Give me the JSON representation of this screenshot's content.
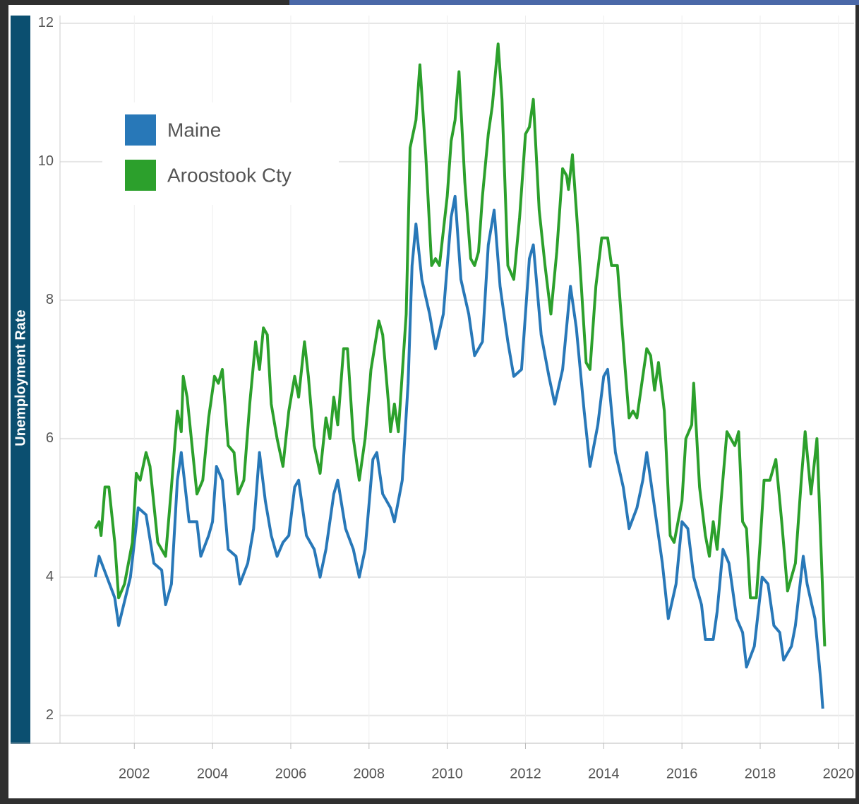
{
  "chart_data": {
    "type": "line",
    "y_label": "Unemployment Rate",
    "xlim": [
      2000.1,
      2020.4
    ],
    "xticks": [
      2002,
      2004,
      2006,
      2008,
      2010,
      2012,
      2014,
      2016,
      2018,
      2020
    ],
    "ylim": [
      1.6,
      12.03
    ],
    "yticks": [
      2,
      4,
      6,
      8,
      10,
      12
    ],
    "grid": true,
    "legend": "upper left",
    "series": [
      {
        "name": "Maine",
        "color": "#2878b8",
        "x": [
          2001.0,
          2001.1,
          2001.3,
          2001.5,
          2001.6,
          2001.9,
          2002.1,
          2002.3,
          2002.5,
          2002.7,
          2002.8,
          2002.95,
          2003.1,
          2003.2,
          2003.4,
          2003.6,
          2003.7,
          2003.9,
          2004.0,
          2004.1,
          2004.25,
          2004.4,
          2004.6,
          2004.7,
          2004.9,
          2005.05,
          2005.2,
          2005.35,
          2005.5,
          2005.65,
          2005.8,
          2005.95,
          2006.1,
          2006.2,
          2006.4,
          2006.6,
          2006.75,
          2006.9,
          2007.1,
          2007.2,
          2007.4,
          2007.6,
          2007.75,
          2007.9,
          2008.1,
          2008.2,
          2008.35,
          2008.55,
          2008.65,
          2008.85,
          2009.0,
          2009.1,
          2009.2,
          2009.35,
          2009.55,
          2009.7,
          2009.9,
          2010.1,
          2010.2,
          2010.35,
          2010.55,
          2010.7,
          2010.9,
          2011.05,
          2011.2,
          2011.35,
          2011.55,
          2011.7,
          2011.9,
          2012.1,
          2012.2,
          2012.4,
          2012.6,
          2012.75,
          2012.95,
          2013.15,
          2013.3,
          2013.5,
          2013.65,
          2013.85,
          2014.0,
          2014.1,
          2014.3,
          2014.5,
          2014.65,
          2014.85,
          2015.0,
          2015.1,
          2015.3,
          2015.5,
          2015.65,
          2015.85,
          2016.0,
          2016.15,
          2016.3,
          2016.5,
          2016.6,
          2016.8,
          2016.9,
          2017.05,
          2017.2,
          2017.4,
          2017.55,
          2017.65,
          2017.85,
          2018.05,
          2018.2,
          2018.35,
          2018.5,
          2018.6,
          2018.8,
          2018.9,
          2019.1,
          2019.2,
          2019.4,
          2019.55,
          2019.6
        ],
        "values": [
          4.0,
          4.3,
          4.0,
          3.7,
          3.3,
          4.0,
          5.0,
          4.9,
          4.2,
          4.1,
          3.6,
          3.9,
          5.4,
          5.8,
          4.8,
          4.8,
          4.3,
          4.6,
          4.8,
          5.6,
          5.4,
          4.4,
          4.3,
          3.9,
          4.2,
          4.7,
          5.8,
          5.1,
          4.6,
          4.3,
          4.5,
          4.6,
          5.3,
          5.4,
          4.6,
          4.4,
          4.0,
          4.4,
          5.2,
          5.4,
          4.7,
          4.4,
          4.0,
          4.4,
          5.7,
          5.8,
          5.2,
          5.0,
          4.8,
          5.4,
          6.8,
          8.5,
          9.1,
          8.3,
          7.8,
          7.3,
          7.8,
          9.2,
          9.5,
          8.3,
          7.8,
          7.2,
          7.4,
          8.8,
          9.3,
          8.2,
          7.4,
          6.9,
          7.0,
          8.6,
          8.8,
          7.5,
          6.9,
          6.5,
          7.0,
          8.2,
          7.6,
          6.4,
          5.6,
          6.2,
          6.9,
          7.0,
          5.8,
          5.3,
          4.7,
          5.0,
          5.4,
          5.8,
          5.0,
          4.2,
          3.4,
          3.9,
          4.8,
          4.7,
          4.0,
          3.6,
          3.1,
          3.1,
          3.5,
          4.4,
          4.2,
          3.4,
          3.2,
          2.7,
          3.0,
          4.0,
          3.9,
          3.3,
          3.2,
          2.8,
          3.0,
          3.3,
          4.3,
          3.9,
          3.4,
          2.5,
          2.1
        ]
      },
      {
        "name": "Aroostook Cty",
        "color": "#2ca02c",
        "x": [
          2001.0,
          2001.1,
          2001.15,
          2001.25,
          2001.35,
          2001.5,
          2001.6,
          2001.75,
          2001.95,
          2002.05,
          2002.15,
          2002.3,
          2002.4,
          2002.6,
          2002.8,
          2002.95,
          2003.1,
          2003.2,
          2003.25,
          2003.35,
          2003.6,
          2003.75,
          2003.9,
          2004.05,
          2004.15,
          2004.25,
          2004.4,
          2004.55,
          2004.65,
          2004.8,
          2004.95,
          2005.1,
          2005.2,
          2005.3,
          2005.4,
          2005.5,
          2005.65,
          2005.8,
          2005.95,
          2006.1,
          2006.2,
          2006.35,
          2006.45,
          2006.6,
          2006.75,
          2006.9,
          2007.0,
          2007.1,
          2007.2,
          2007.35,
          2007.45,
          2007.6,
          2007.75,
          2007.9,
          2008.05,
          2008.25,
          2008.35,
          2008.5,
          2008.55,
          2008.65,
          2008.75,
          2008.95,
          2009.05,
          2009.2,
          2009.3,
          2009.45,
          2009.6,
          2009.7,
          2009.8,
          2010.0,
          2010.1,
          2010.2,
          2010.3,
          2010.45,
          2010.6,
          2010.7,
          2010.8,
          2010.9,
          2011.05,
          2011.15,
          2011.3,
          2011.4,
          2011.55,
          2011.7,
          2011.85,
          2012.0,
          2012.1,
          2012.2,
          2012.35,
          2012.5,
          2012.65,
          2012.8,
          2012.95,
          2013.05,
          2013.1,
          2013.2,
          2013.35,
          2013.55,
          2013.65,
          2013.8,
          2013.95,
          2014.1,
          2014.2,
          2014.35,
          2014.55,
          2014.65,
          2014.75,
          2014.85,
          2015.0,
          2015.1,
          2015.2,
          2015.3,
          2015.4,
          2015.55,
          2015.7,
          2015.8,
          2016.0,
          2016.1,
          2016.25,
          2016.3,
          2016.45,
          2016.6,
          2016.7,
          2016.8,
          2016.9,
          2017.0,
          2017.15,
          2017.35,
          2017.45,
          2017.55,
          2017.65,
          2017.75,
          2017.9,
          2018.0,
          2018.1,
          2018.25,
          2018.4,
          2018.55,
          2018.7,
          2018.9,
          2019.05,
          2019.15,
          2019.3,
          2019.45,
          2019.55,
          2019.65
        ],
        "values": [
          4.7,
          4.8,
          4.6,
          5.3,
          5.3,
          4.5,
          3.7,
          3.9,
          4.5,
          5.5,
          5.4,
          5.8,
          5.6,
          4.5,
          4.3,
          5.3,
          6.4,
          6.1,
          6.9,
          6.6,
          5.2,
          5.4,
          6.3,
          6.9,
          6.8,
          7.0,
          5.9,
          5.8,
          5.2,
          5.4,
          6.5,
          7.4,
          7.0,
          7.6,
          7.5,
          6.5,
          6.0,
          5.6,
          6.4,
          6.9,
          6.6,
          7.4,
          6.9,
          5.9,
          5.5,
          6.3,
          6.0,
          6.6,
          6.2,
          7.3,
          7.3,
          6.0,
          5.4,
          6.0,
          7.0,
          7.7,
          7.5,
          6.5,
          6.1,
          6.5,
          6.1,
          7.8,
          10.2,
          10.6,
          11.4,
          10.1,
          8.5,
          8.6,
          8.5,
          9.5,
          10.3,
          10.6,
          11.3,
          9.7,
          8.6,
          8.5,
          8.7,
          9.5,
          10.4,
          10.8,
          11.7,
          10.9,
          8.5,
          8.3,
          9.2,
          10.4,
          10.5,
          10.9,
          9.3,
          8.5,
          7.8,
          8.7,
          9.9,
          9.8,
          9.6,
          10.1,
          8.9,
          7.1,
          7.0,
          8.2,
          8.9,
          8.9,
          8.5,
          8.5,
          7.0,
          6.3,
          6.4,
          6.3,
          6.9,
          7.3,
          7.2,
          6.7,
          7.1,
          6.4,
          4.6,
          4.5,
          5.1,
          6.0,
          6.2,
          6.8,
          5.3,
          4.6,
          4.3,
          4.8,
          4.4,
          5.1,
          6.1,
          5.9,
          6.1,
          4.8,
          4.7,
          3.7,
          3.7,
          4.5,
          5.4,
          5.4,
          5.7,
          4.8,
          3.8,
          4.2,
          5.4,
          6.1,
          5.2,
          6.0,
          4.5,
          3.0
        ]
      }
    ]
  }
}
